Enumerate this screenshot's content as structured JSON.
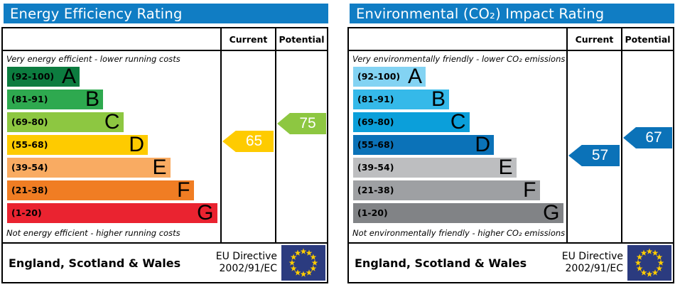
{
  "chart_data": [
    {
      "type": "bar",
      "id": "energy-efficiency-rating",
      "title": "Energy Efficiency Rating",
      "header_color": "#107dc4",
      "scale": {
        "min": 1,
        "max": 100
      },
      "columns": {
        "current": "Current",
        "potential": "Potential"
      },
      "top_note": "Very energy efficient - lower running costs",
      "bottom_note": "Not energy efficient - higher running costs",
      "bands": [
        {
          "letter": "A",
          "range": "(92-100)",
          "min": 92,
          "max": 100,
          "color": "#0c7c3f",
          "width_pct": 34
        },
        {
          "letter": "B",
          "range": "(81-91)",
          "min": 81,
          "max": 91,
          "color": "#2ea94f",
          "width_pct": 45
        },
        {
          "letter": "C",
          "range": "(69-80)",
          "min": 69,
          "max": 80,
          "color": "#8dc741",
          "width_pct": 54.5
        },
        {
          "letter": "D",
          "range": "(55-68)",
          "min": 55,
          "max": 68,
          "color": "#fecb00",
          "width_pct": 66
        },
        {
          "letter": "E",
          "range": "(39-54)",
          "min": 39,
          "max": 54,
          "color": "#f9ab62",
          "width_pct": 76.5
        },
        {
          "letter": "F",
          "range": "(21-38)",
          "min": 21,
          "max": 38,
          "color": "#f07d23",
          "width_pct": 87.5
        },
        {
          "letter": "G",
          "range": "(1-20)",
          "min": 1,
          "max": 20,
          "color": "#ea2330",
          "width_pct": 98.5
        }
      ],
      "current": {
        "value": 65,
        "band": "D",
        "color": "#fecb00"
      },
      "potential": {
        "value": 75,
        "band": "C",
        "color": "#8dc741"
      },
      "footer": {
        "region": "England, Scotland & Wales",
        "directive_line1": "EU Directive",
        "directive_line2": "2002/91/EC",
        "flag": {
          "bg": "#2b3b7f",
          "stars": "#ffcc00"
        }
      }
    },
    {
      "type": "bar",
      "id": "environmental-co2-impact-rating",
      "title": "Environmental (CO₂) Impact Rating",
      "header_color": "#107dc4",
      "scale": {
        "min": 1,
        "max": 100
      },
      "columns": {
        "current": "Current",
        "potential": "Potential"
      },
      "top_note": "Very environmentally friendly - lower CO₂ emissions",
      "bottom_note": "Not environmentally friendly - higher CO₂ emissions",
      "bands": [
        {
          "letter": "A",
          "range": "(92-100)",
          "min": 92,
          "max": 100,
          "color": "#83d3f3",
          "width_pct": 34
        },
        {
          "letter": "B",
          "range": "(81-91)",
          "min": 81,
          "max": 91,
          "color": "#35b9e9",
          "width_pct": 45
        },
        {
          "letter": "C",
          "range": "(69-80)",
          "min": 69,
          "max": 80,
          "color": "#0b9fda",
          "width_pct": 54.5
        },
        {
          "letter": "D",
          "range": "(55-68)",
          "min": 55,
          "max": 68,
          "color": "#0b72b8",
          "width_pct": 66
        },
        {
          "letter": "E",
          "range": "(39-54)",
          "min": 39,
          "max": 54,
          "color": "#bdbec0",
          "width_pct": 76.5
        },
        {
          "letter": "F",
          "range": "(21-38)",
          "min": 21,
          "max": 38,
          "color": "#9ea0a3",
          "width_pct": 87.5
        },
        {
          "letter": "G",
          "range": "(1-20)",
          "min": 1,
          "max": 20,
          "color": "#818386",
          "width_pct": 98.5
        }
      ],
      "current": {
        "value": 57,
        "band": "D",
        "color": "#0b72b8"
      },
      "potential": {
        "value": 67,
        "band": "D",
        "color": "#0b72b8"
      },
      "footer": {
        "region": "England, Scotland & Wales",
        "directive_line1": "EU Directive",
        "directive_line2": "2002/91/EC",
        "flag": {
          "bg": "#2b3b7f",
          "stars": "#ffcc00"
        }
      }
    }
  ]
}
